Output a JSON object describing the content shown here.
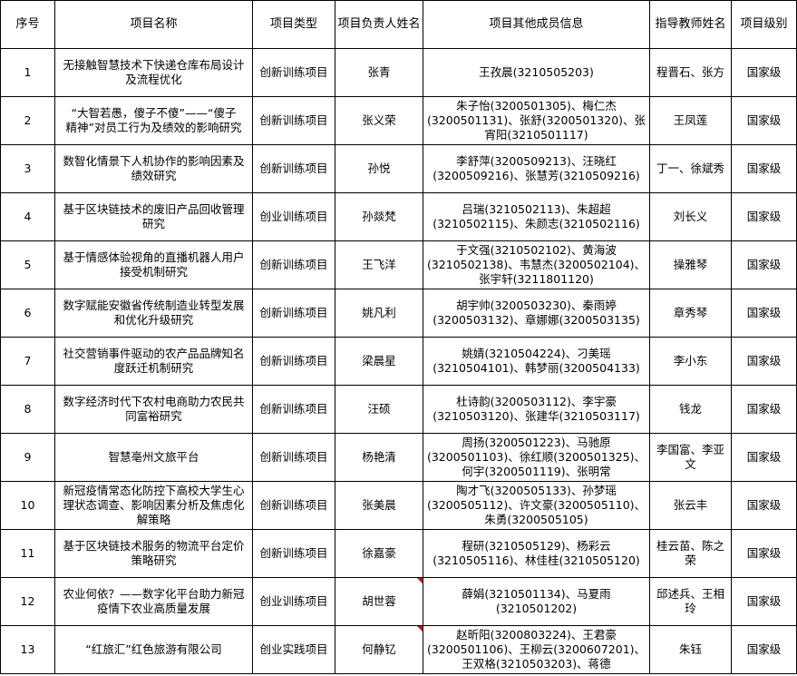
{
  "headers": [
    "序号",
    "项目名称",
    "项目类型",
    "项目负责人姓名",
    "项目其他成员信息",
    "指导教师姓名",
    "项目级别"
  ],
  "rows": [
    {
      "no": "1",
      "name": "无接触智慧技术下快递仓库布局设计\n及流程优化",
      "type": "创新训练项目",
      "leader": "张青",
      "members": "王孜晨(3210505203)",
      "advisor": "程晋石、张方",
      "level": "国家级"
    },
    {
      "no": "2",
      "name": "“大智若愚，傻子不傻”——“傻子\n精神”对员工行为及绩效的影响研究",
      "type": "创新训练项目",
      "leader": "张义荣",
      "members": "朱子怡(3200501305)、梅仁杰\n(3200501131)、张舒(3200501320)、张\n宵阳(3210501117)",
      "advisor": "王凤莲",
      "level": "国家级"
    },
    {
      "no": "3",
      "name": "数智化情景下人机协作的影响因素及\n绩效研究",
      "type": "创新训练项目",
      "leader": "孙悦",
      "members": "李舒萍(3200509213)、汪晓红\n(3200509216)、张慧芳(3210509216)",
      "advisor": "丁一、徐斌秀",
      "level": "国家级"
    },
    {
      "no": "4",
      "name": "基于区块链技术的废旧产品回收管理\n研究",
      "type": "创业训练项目",
      "leader": "孙燚梵",
      "members": "吕瑞(3210502113)、朱超超\n(3210502115)、朱颜志(3210502116)",
      "advisor": "刘长义",
      "level": "国家级"
    },
    {
      "no": "5",
      "name": "基于情感体验视角的直播机器人用户\n接受机制研究",
      "type": "创新训练项目",
      "leader": "王飞洋",
      "members": "于文强(3210502102)、黄海波\n(3210502138)、韦慧杰(3200502104)、\n张宇轩(3211801120)",
      "advisor": "操雅琴",
      "level": "国家级"
    },
    {
      "no": "6",
      "name": "数字赋能安徽省传统制造业转型发展\n和优化升级研究",
      "type": "创新训练项目",
      "leader": "姚凡利",
      "members": "胡宇帅(3200503230)、秦雨婷\n(3200503132)、章娜娜(3200503135)",
      "advisor": "章秀琴",
      "level": "国家级"
    },
    {
      "no": "7",
      "name": "社交营销事件驱动的农产品品牌知名\n度跃迁机制研究",
      "type": "创新训练项目",
      "leader": "梁晨星",
      "members": "姚婧(3210504224)、刁美瑶\n(3210504101)、韩梦丽(3200504133)",
      "advisor": "李小东",
      "level": "国家级"
    },
    {
      "no": "8",
      "name": "数字经济时代下农村电商助力农民共\n同富裕研究",
      "type": "创新训练项目",
      "leader": "汪硕",
      "members": "杜诗韵(3200503112)、李宇豪\n(3210503120)、张建华(3210503117)",
      "advisor": "钱龙",
      "level": "国家级"
    },
    {
      "no": "9",
      "name": "智慧亳州文旅平台",
      "type": "创新训练项目",
      "leader": "杨艳清",
      "members": "周扬(3200501223)、马驰原\n(3200501103)、徐红顺(3200501325)、\n何宇(3200501119)、张明常",
      "advisor": "李国富、李亚\n文",
      "level": "国家级"
    },
    {
      "no": "10",
      "name": "新冠疫情常态化防控下高校大学生心\n理状态调查、影响因素分析及焦虑化\n解策略",
      "type": "创新训练项目",
      "leader": "张美晨",
      "members": "陶才飞(3200505133)、孙梦瑶\n(3200505112)、许文豪(3200505110)、\n朱勇(3200505105)",
      "advisor": "张云丰",
      "level": "国家级"
    },
    {
      "no": "11",
      "name": "基于区块链技术服务的物流平台定价\n策略研究",
      "type": "创新训练项目",
      "leader": "徐嘉豪",
      "members": "程研(3210505129)、杨彩云\n(3210505116)、林佳桂(3210505120)",
      "advisor": "桂云苗、陈之\n荣",
      "level": "国家级"
    },
    {
      "no": "12",
      "name": "农业何依？——数字化平台助力新冠\n疫情下农业高质量发展",
      "type": "创业训练项目",
      "leader": "胡世蓉",
      "members": "薛娟(3210501134)、马夏雨\n(3210501202)",
      "advisor": "邱述兵、王相\n玲",
      "level": "国家级",
      "leader_note": true
    },
    {
      "no": "13",
      "name": "“红旅汇”红色旅游有限公司",
      "type": "创业实践项目",
      "leader": "何静钇",
      "members": "赵昕阳(3200803224)、王君豪\n(3200501106)、王柳云(3200607201)、\n王双格(3210503203)、蒋德",
      "advisor": "朱钰",
      "level": "国家级",
      "leader_note": true
    }
  ],
  "colors": {
    "grid": "#000000",
    "comment_marker": "#ee0000"
  }
}
